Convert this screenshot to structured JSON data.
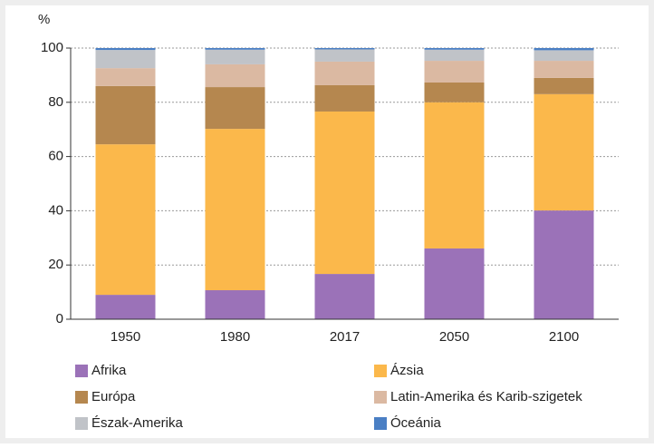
{
  "chart_data": {
    "type": "stacked_bar",
    "y_label": "%",
    "categories": [
      "1950",
      "1980",
      "2017",
      "2050",
      "2100"
    ],
    "series": [
      {
        "name": "Afrika",
        "color": "#9b72b8",
        "values": [
          9,
          10.7,
          16.7,
          26.1,
          40.1
        ]
      },
      {
        "name": "Ázsia",
        "color": "#fbb84b",
        "values": [
          55.5,
          59.5,
          59.9,
          53.9,
          42.9
        ]
      },
      {
        "name": "Európa",
        "color": "#b5874f",
        "values": [
          21.5,
          15.4,
          9.7,
          7.3,
          6
        ]
      },
      {
        "name": "Latin-Amerika és Karib-szigetek",
        "color": "#dbb9a2",
        "values": [
          6.6,
          8.4,
          8.7,
          8,
          6.3
        ]
      },
      {
        "name": "Észak-Amerika",
        "color": "#c0c3c8",
        "values": [
          6.7,
          5.4,
          4.5,
          4.1,
          3.9
        ]
      },
      {
        "name": "Óceánia",
        "color": "#4a7fc4",
        "values": [
          0.7,
          0.6,
          0.5,
          0.6,
          0.8
        ]
      }
    ],
    "ylim": [
      0,
      100
    ],
    "yticks": [
      0,
      20,
      40,
      60,
      80,
      100
    ],
    "grid": true
  }
}
